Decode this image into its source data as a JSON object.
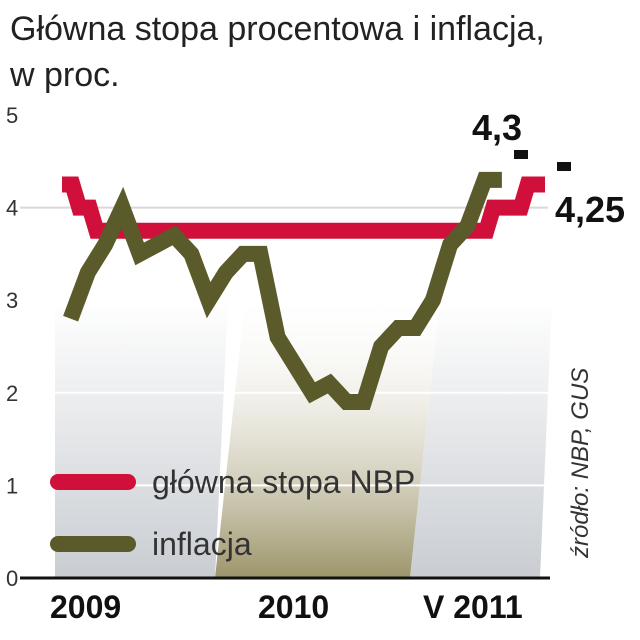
{
  "title_line1": "Główna stopa procentowa i inflacja,",
  "title_line2": "w proc.",
  "source": "źródło: NBP, GUS",
  "chart_data": {
    "type": "line",
    "ylim": [
      0,
      5
    ],
    "yticks": [
      "0",
      "1",
      "2",
      "3",
      "4",
      "5"
    ],
    "x_labels": [
      "2009",
      "2010",
      "V 2011"
    ],
    "series": [
      {
        "name": "główna stopa NBP",
        "color": "#d0103a",
        "values": [
          4.25,
          4.0,
          3.75,
          3.75,
          3.75,
          3.75,
          3.75,
          3.75,
          3.75,
          3.75,
          3.75,
          3.75,
          3.75,
          3.75,
          3.75,
          3.75,
          3.75,
          3.75,
          3.75,
          3.75,
          3.75,
          3.75,
          3.75,
          3.75,
          3.75,
          4.0,
          4.0,
          4.25,
          4.25
        ]
      },
      {
        "name": "inflacja",
        "color": "#5b5a2a",
        "values": [
          2.8,
          3.3,
          3.6,
          4.0,
          3.5,
          3.6,
          3.7,
          3.5,
          3.0,
          3.3,
          3.5,
          3.5,
          2.6,
          2.3,
          2.0,
          2.1,
          1.9,
          1.9,
          2.5,
          2.7,
          2.7,
          3.0,
          3.6,
          3.8,
          4.3,
          4.3
        ]
      }
    ],
    "annotations": [
      "4,3",
      "4,25"
    ]
  }
}
